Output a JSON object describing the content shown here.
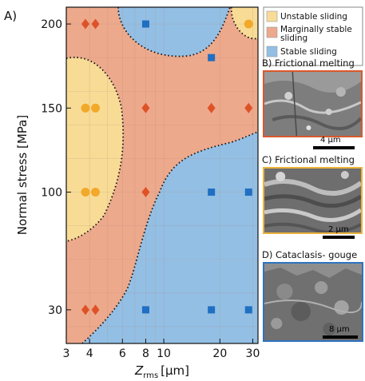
{
  "panel_label": "A)",
  "colors": {
    "unstable": "#f8dc96",
    "marginal": "#eda98c",
    "stable": "#93bfe4",
    "marker_unstable": "#f2a92a",
    "marker_marginal": "#de5227",
    "marker_stable": "#1f6fc2",
    "frame_b": "#d9582b",
    "frame_c": "#eab43c",
    "frame_d": "#2e73c0"
  },
  "chart_data": {
    "type": "scatter",
    "x_scale": "log",
    "xlabel_main": "Z",
    "xlabel_sub": "rms",
    "xlabel_unit": "[µm]",
    "ylabel": "Normal stress [MPa]",
    "xlim": [
      3,
      32
    ],
    "ylim": [
      10,
      210
    ],
    "x_ticks": [
      3,
      4,
      6,
      8,
      10,
      20,
      30
    ],
    "x_tick_labels": [
      "3",
      "4",
      "6",
      "8",
      "10",
      "20",
      "30"
    ],
    "y_ticks": [
      30,
      100,
      150,
      200
    ],
    "y_tick_labels": [
      "30",
      "100",
      "150",
      "200"
    ],
    "legend": [
      {
        "label": "Unstable sliding",
        "key": "unstable"
      },
      {
        "label": "Marginally stable sliding",
        "key": "marginal"
      },
      {
        "label": "Stable sliding",
        "key": "stable"
      }
    ],
    "series": [
      {
        "name": "Unstable sliding",
        "marker": "circle",
        "x": [
          3.8,
          4.3,
          3.8,
          4.3,
          28.5
        ],
        "y": [
          150,
          150,
          100,
          100,
          200
        ]
      },
      {
        "name": "Marginally stable sliding",
        "marker": "diamond",
        "x": [
          3.8,
          4.3,
          8,
          18,
          28.5,
          8,
          3.8,
          4.3
        ],
        "y": [
          200,
          200,
          150,
          150,
          150,
          100,
          30,
          30
        ]
      },
      {
        "name": "Stable sliding",
        "marker": "square",
        "x": [
          8,
          18,
          18,
          28.5,
          8,
          18,
          28.5
        ],
        "y": [
          200,
          180,
          100,
          100,
          30,
          30,
          30
        ]
      }
    ]
  },
  "panels": [
    {
      "title": "B) Frictional melting",
      "scale": "4 µm"
    },
    {
      "title": "C) Frictional melting",
      "scale": "2 µm"
    },
    {
      "title": "D) Cataclasis- gouge",
      "scale": "8 µm"
    }
  ]
}
